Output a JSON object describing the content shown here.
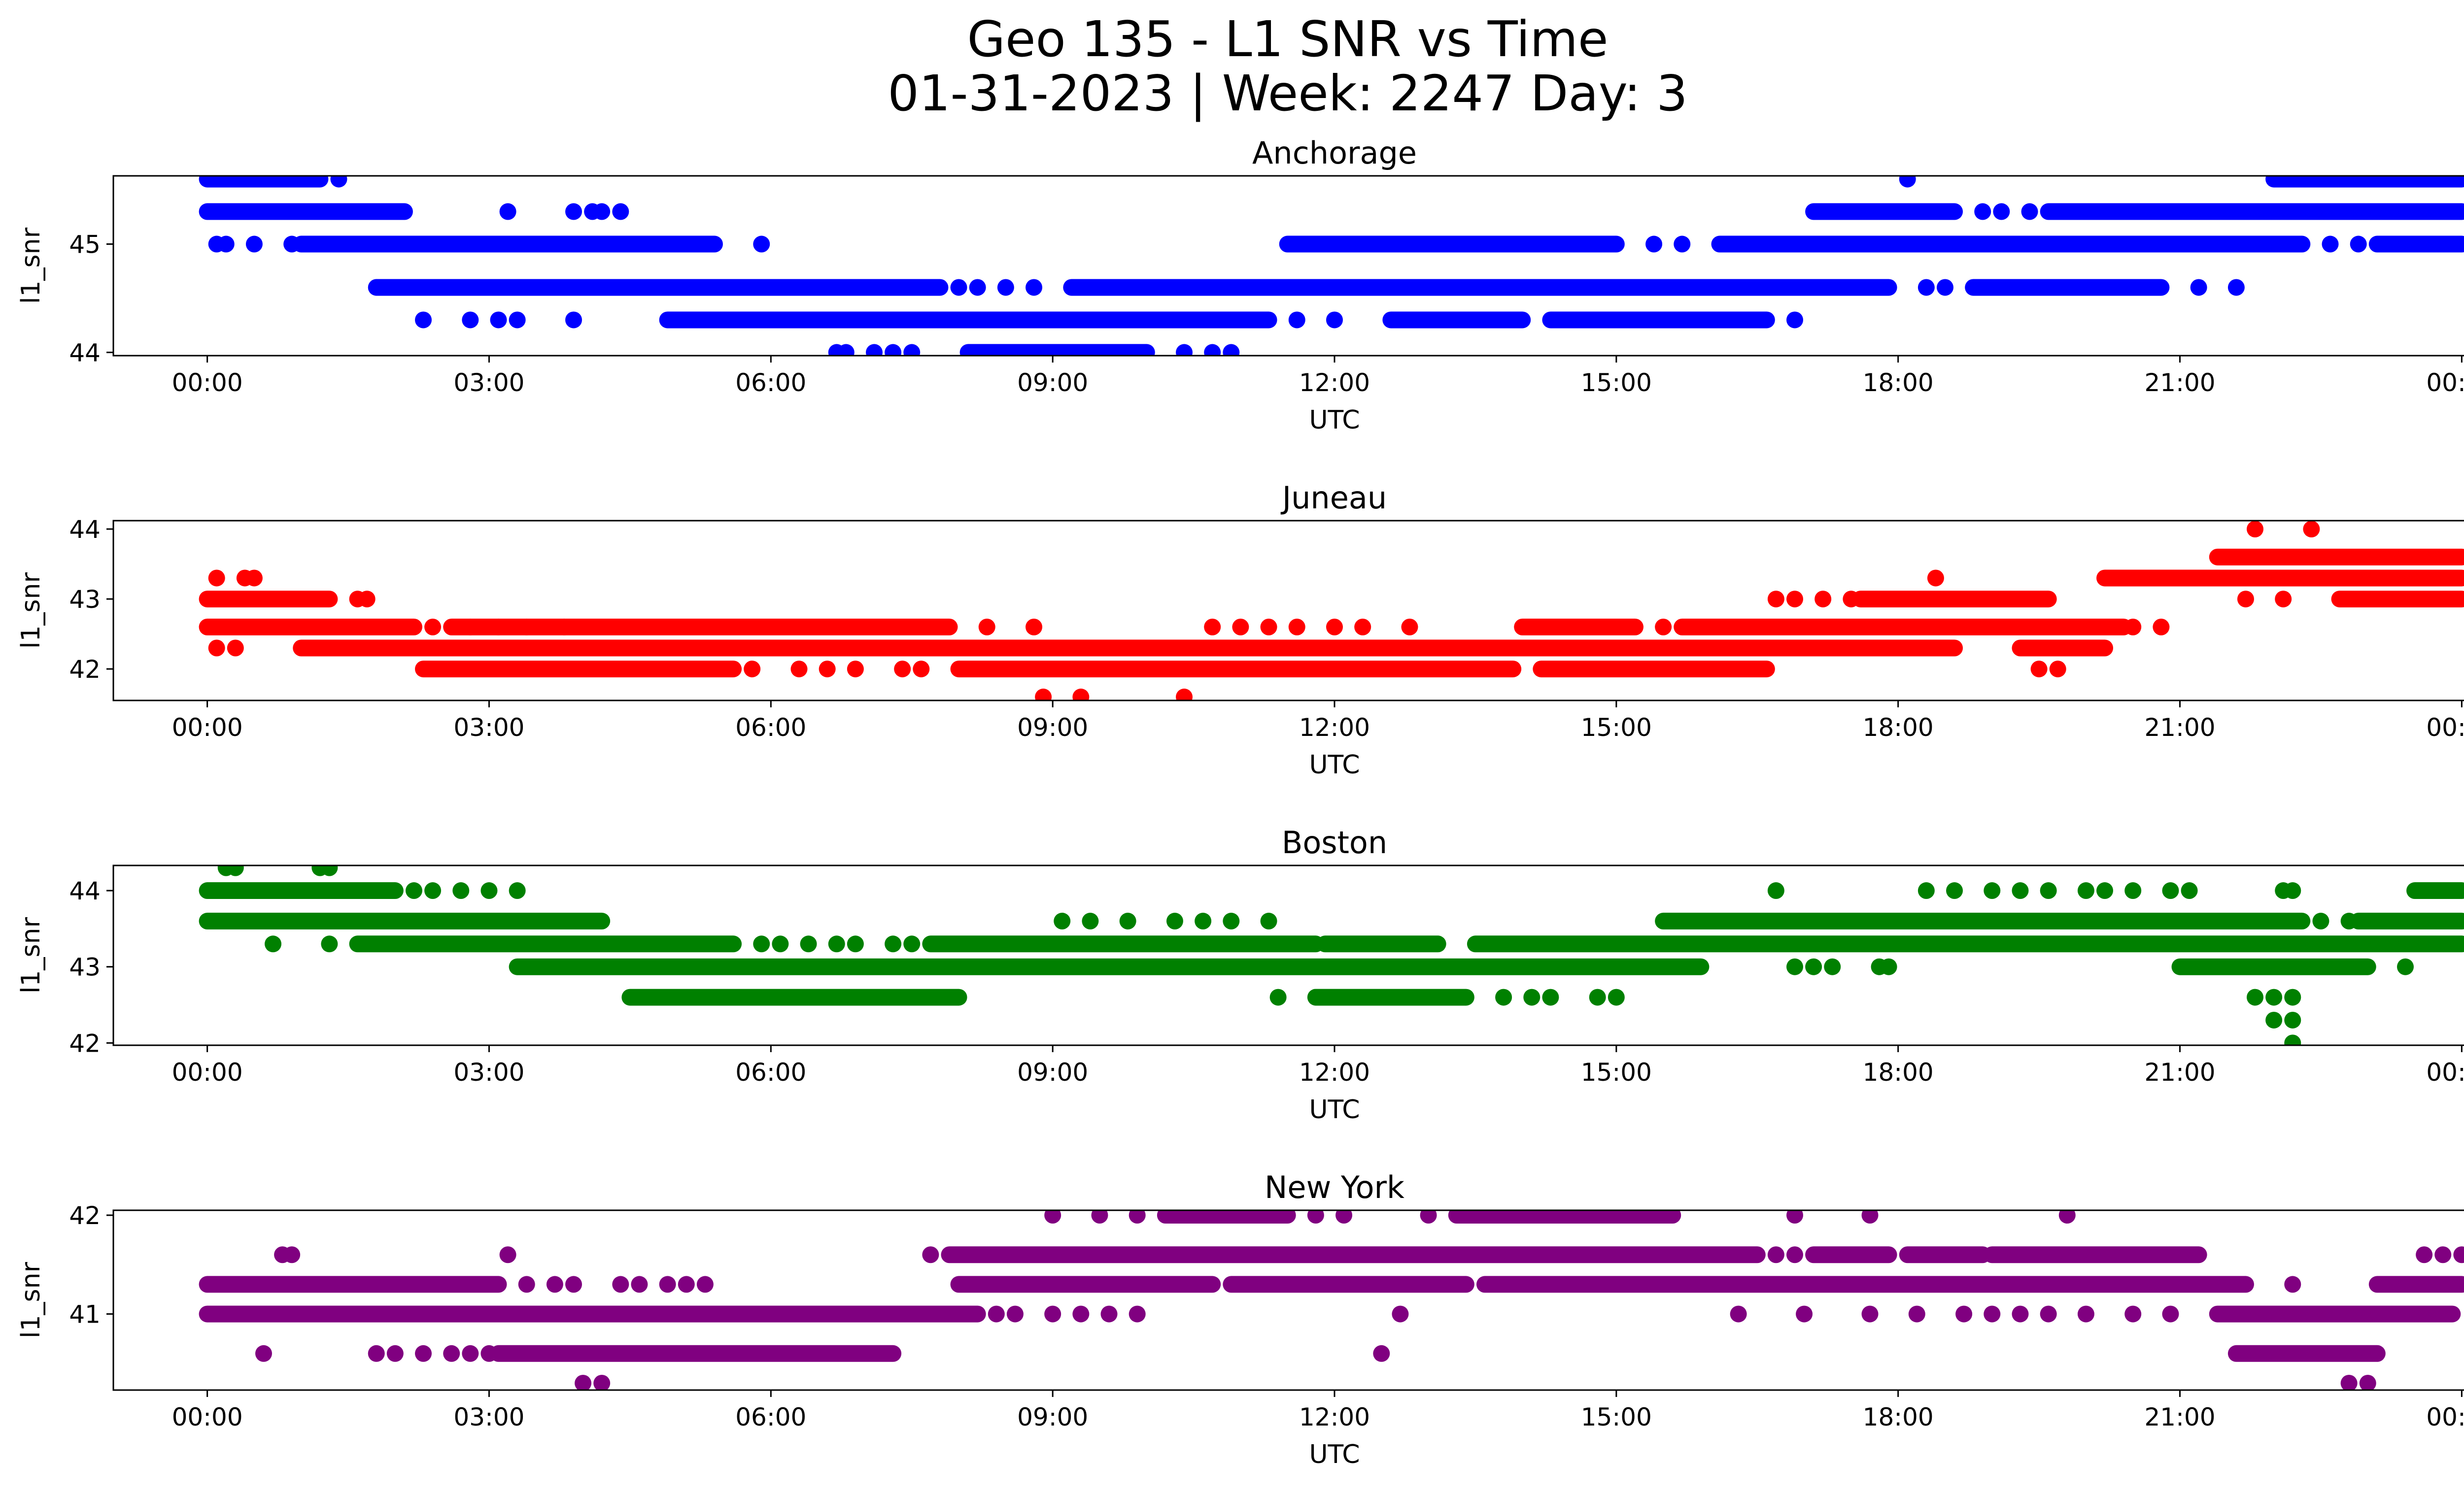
{
  "figure": {
    "title_line1": "Geo 135 - L1 SNR vs Time",
    "title_line2": "01-31-2023 | Week: 2247 Day: 3"
  },
  "chart_data": [
    {
      "type": "scatter",
      "title": "Anchorage",
      "xlabel": "UTC",
      "ylabel": "l1_snr",
      "color": "#0000ff",
      "xlim": [
        -1.0,
        25.0
      ],
      "ylim": [
        43.97,
        45.63
      ],
      "x_ticks": [
        "00:00",
        "03:00",
        "06:00",
        "09:00",
        "12:00",
        "15:00",
        "18:00",
        "21:00",
        "00:00"
      ],
      "y_ticks": [
        44,
        45
      ],
      "point_size_note": "x in hours UTC, y in dB-Hz",
      "bands": [
        {
          "y": 45.6,
          "segments": [
            [
              0.0,
              1.2
            ],
            [
              22.0,
              24.0
            ]
          ],
          "isolated": [
            1.4,
            18.1
          ]
        },
        {
          "y": 45.3,
          "segments": [
            [
              0.0,
              2.1
            ],
            [
              17.1,
              18.6
            ],
            [
              19.6,
              21.3
            ],
            [
              21.3,
              24.0
            ]
          ],
          "isolated": [
            3.2,
            3.9,
            4.1,
            4.2,
            4.4,
            18.9,
            19.1,
            19.4,
            20.2
          ]
        },
        {
          "y": 45.0,
          "segments": [
            [
              1.0,
              5.4
            ],
            [
              11.5,
              15.0
            ],
            [
              16.1,
              17.9
            ],
            [
              17.9,
              22.3
            ],
            [
              23.1,
              24.0
            ]
          ],
          "isolated": [
            0.1,
            0.2,
            0.5,
            0.9,
            5.9,
            15.4,
            15.7,
            22.6,
            22.9
          ]
        },
        {
          "y": 44.6,
          "segments": [
            [
              1.8,
              7.8
            ],
            [
              9.2,
              17.9
            ],
            [
              18.8,
              20.8
            ]
          ],
          "isolated": [
            8.0,
            8.2,
            8.5,
            8.8,
            18.3,
            18.5,
            21.2,
            21.6
          ]
        },
        {
          "y": 44.3,
          "segments": [
            [
              4.9,
              11.3
            ],
            [
              12.6,
              14.0
            ],
            [
              14.3,
              16.6
            ]
          ],
          "isolated": [
            2.3,
            2.8,
            3.1,
            3.3,
            3.9,
            11.6,
            12.0,
            16.9
          ]
        },
        {
          "y": 44.0,
          "segments": [
            [
              8.1,
              10.0
            ]
          ],
          "isolated": [
            6.7,
            6.8,
            7.1,
            7.3,
            7.5,
            10.4,
            10.7,
            10.9
          ]
        }
      ]
    },
    {
      "type": "scatter",
      "title": "Juneau",
      "xlabel": "UTC",
      "ylabel": "l1_snr",
      "color": "#ff0000",
      "xlim": [
        -1.0,
        25.0
      ],
      "ylim": [
        41.55,
        44.12
      ],
      "x_ticks": [
        "00:00",
        "03:00",
        "06:00",
        "09:00",
        "12:00",
        "15:00",
        "18:00",
        "21:00",
        "00:00"
      ],
      "y_ticks": [
        42,
        43,
        44
      ],
      "bands": [
        {
          "y": 44.0,
          "segments": [],
          "isolated": [
            21.8,
            22.4
          ]
        },
        {
          "y": 43.6,
          "segments": [
            [
              21.4,
              24.0
            ]
          ],
          "isolated": []
        },
        {
          "y": 43.3,
          "segments": [
            [
              20.2,
              24.0
            ]
          ],
          "isolated": [
            0.1,
            0.4,
            0.5,
            18.4
          ]
        },
        {
          "y": 43.0,
          "segments": [
            [
              0.0,
              1.3
            ],
            [
              17.6,
              19.6
            ],
            [
              22.7,
              24.0
            ]
          ],
          "isolated": [
            1.6,
            1.7,
            16.7,
            16.9,
            17.2,
            17.5,
            21.7,
            22.1
          ]
        },
        {
          "y": 42.6,
          "segments": [
            [
              0.0,
              2.2
            ],
            [
              2.6,
              7.9
            ],
            [
              14.0,
              15.2
            ],
            [
              15.7,
              20.4
            ]
          ],
          "isolated": [
            2.4,
            2.8,
            3.1,
            3.4,
            3.8,
            8.3,
            8.8,
            10.7,
            11.0,
            11.3,
            11.6,
            12.0,
            12.3,
            12.8,
            15.5,
            20.5,
            20.8
          ]
        },
        {
          "y": 42.3,
          "segments": [
            [
              1.0,
              18.6
            ],
            [
              19.3,
              20.2
            ]
          ],
          "isolated": [
            0.1,
            0.3
          ]
        },
        {
          "y": 42.0,
          "segments": [
            [
              2.3,
              5.6
            ],
            [
              8.0,
              13.9
            ],
            [
              14.2,
              16.6
            ]
          ],
          "isolated": [
            5.8,
            6.3,
            6.6,
            6.9,
            7.4,
            7.6,
            19.5,
            19.7
          ]
        },
        {
          "y": 41.6,
          "segments": [],
          "isolated": [
            8.9,
            9.3,
            10.4
          ]
        }
      ]
    },
    {
      "type": "scatter",
      "title": "Boston",
      "xlabel": "UTC",
      "ylabel": "l1_snr",
      "color": "#008000",
      "xlim": [
        -1.0,
        25.0
      ],
      "ylim": [
        41.97,
        44.33
      ],
      "x_ticks": [
        "00:00",
        "03:00",
        "06:00",
        "09:00",
        "12:00",
        "15:00",
        "18:00",
        "21:00",
        "00:00"
      ],
      "y_ticks": [
        42,
        43,
        44
      ],
      "bands": [
        {
          "y": 44.3,
          "segments": [],
          "isolated": [
            0.2,
            0.3,
            1.2,
            1.3
          ]
        },
        {
          "y": 44.0,
          "segments": [
            [
              0.0,
              2.0
            ],
            [
              23.5,
              24.0
            ]
          ],
          "isolated": [
            2.2,
            2.4,
            2.7,
            3.0,
            3.3,
            16.7,
            18.3,
            18.6,
            19.0,
            19.3,
            19.6,
            20.0,
            20.2,
            20.5,
            20.9,
            21.1,
            22.1,
            22.2
          ]
        },
        {
          "y": 43.6,
          "segments": [
            [
              0.0,
              4.2
            ],
            [
              15.5,
              22.3
            ],
            [
              22.9,
              24.0
            ]
          ],
          "isolated": [
            9.1,
            9.4,
            9.8,
            10.3,
            10.6,
            10.9,
            11.3,
            22.5,
            22.8
          ]
        },
        {
          "y": 43.3,
          "segments": [
            [
              1.6,
              5.6
            ],
            [
              7.7,
              11.8
            ],
            [
              11.9,
              13.1
            ],
            [
              13.5,
              24.0
            ]
          ],
          "isolated": [
            0.7,
            1.3,
            5.9,
            6.1,
            6.4,
            6.7,
            6.9,
            7.3,
            7.5
          ]
        },
        {
          "y": 43.0,
          "segments": [
            [
              3.3,
              15.9
            ],
            [
              21.0,
              23.0
            ]
          ],
          "isolated": [
            16.9,
            17.1,
            17.3,
            17.8,
            17.9,
            23.4
          ]
        },
        {
          "y": 42.6,
          "segments": [
            [
              4.5,
              8.0
            ],
            [
              11.8,
              13.4
            ]
          ],
          "isolated": [
            11.4,
            13.8,
            14.1,
            14.3,
            14.8,
            15.0,
            21.8,
            22.0,
            22.2
          ]
        },
        {
          "y": 42.3,
          "segments": [],
          "isolated": [
            22.0,
            22.2
          ]
        },
        {
          "y": 42.0,
          "segments": [],
          "isolated": [
            22.2
          ]
        }
      ]
    },
    {
      "type": "scatter",
      "title": "New York",
      "xlabel": "UTC",
      "ylabel": "l1_snr",
      "color": "#800080",
      "xlim": [
        -1.0,
        25.0
      ],
      "ylim": [
        40.23,
        42.05
      ],
      "x_ticks": [
        "00:00",
        "03:00",
        "06:00",
        "09:00",
        "12:00",
        "15:00",
        "18:00",
        "21:00",
        "00:00"
      ],
      "y_ticks": [
        41,
        42
      ],
      "bands": [
        {
          "y": 42.0,
          "segments": [
            [
              10.2,
              11.5
            ],
            [
              13.3,
              15.6
            ]
          ],
          "isolated": [
            9.0,
            9.5,
            9.9,
            11.8,
            12.1,
            13.0,
            14.5,
            14.8,
            15.3,
            16.9,
            17.7,
            19.8
          ]
        },
        {
          "y": 41.6,
          "segments": [
            [
              7.9,
              16.5
            ],
            [
              17.1,
              17.9
            ],
            [
              18.1,
              18.9
            ],
            [
              19.0,
              21.2
            ]
          ],
          "isolated": [
            0.8,
            0.9,
            3.2,
            7.7,
            16.7,
            16.9,
            23.6,
            23.8,
            24.0
          ]
        },
        {
          "y": 41.3,
          "segments": [
            [
              0.0,
              3.1
            ],
            [
              8.0,
              10.7
            ],
            [
              10.9,
              13.4
            ],
            [
              13.6,
              21.7
            ],
            [
              23.1,
              24.0
            ]
          ],
          "isolated": [
            3.4,
            3.7,
            3.9,
            4.4,
            4.6,
            4.9,
            5.1,
            5.3,
            22.2
          ]
        },
        {
          "y": 41.0,
          "segments": [
            [
              0.0,
              8.2
            ],
            [
              21.4,
              23.9
            ]
          ],
          "isolated": [
            8.4,
            8.6,
            9.0,
            9.3,
            9.6,
            9.9,
            12.7,
            16.3,
            17.0,
            17.7,
            18.2,
            18.7,
            19.0,
            19.3,
            19.6,
            20.0,
            20.5,
            20.9
          ]
        },
        {
          "y": 40.6,
          "segments": [
            [
              3.1,
              7.3
            ],
            [
              21.6,
              23.1
            ]
          ],
          "isolated": [
            0.6,
            1.8,
            2.0,
            2.3,
            2.6,
            2.8,
            3.0,
            12.5
          ]
        },
        {
          "y": 40.3,
          "segments": [],
          "isolated": [
            4.0,
            4.2,
            22.8,
            23.0
          ]
        }
      ]
    }
  ]
}
